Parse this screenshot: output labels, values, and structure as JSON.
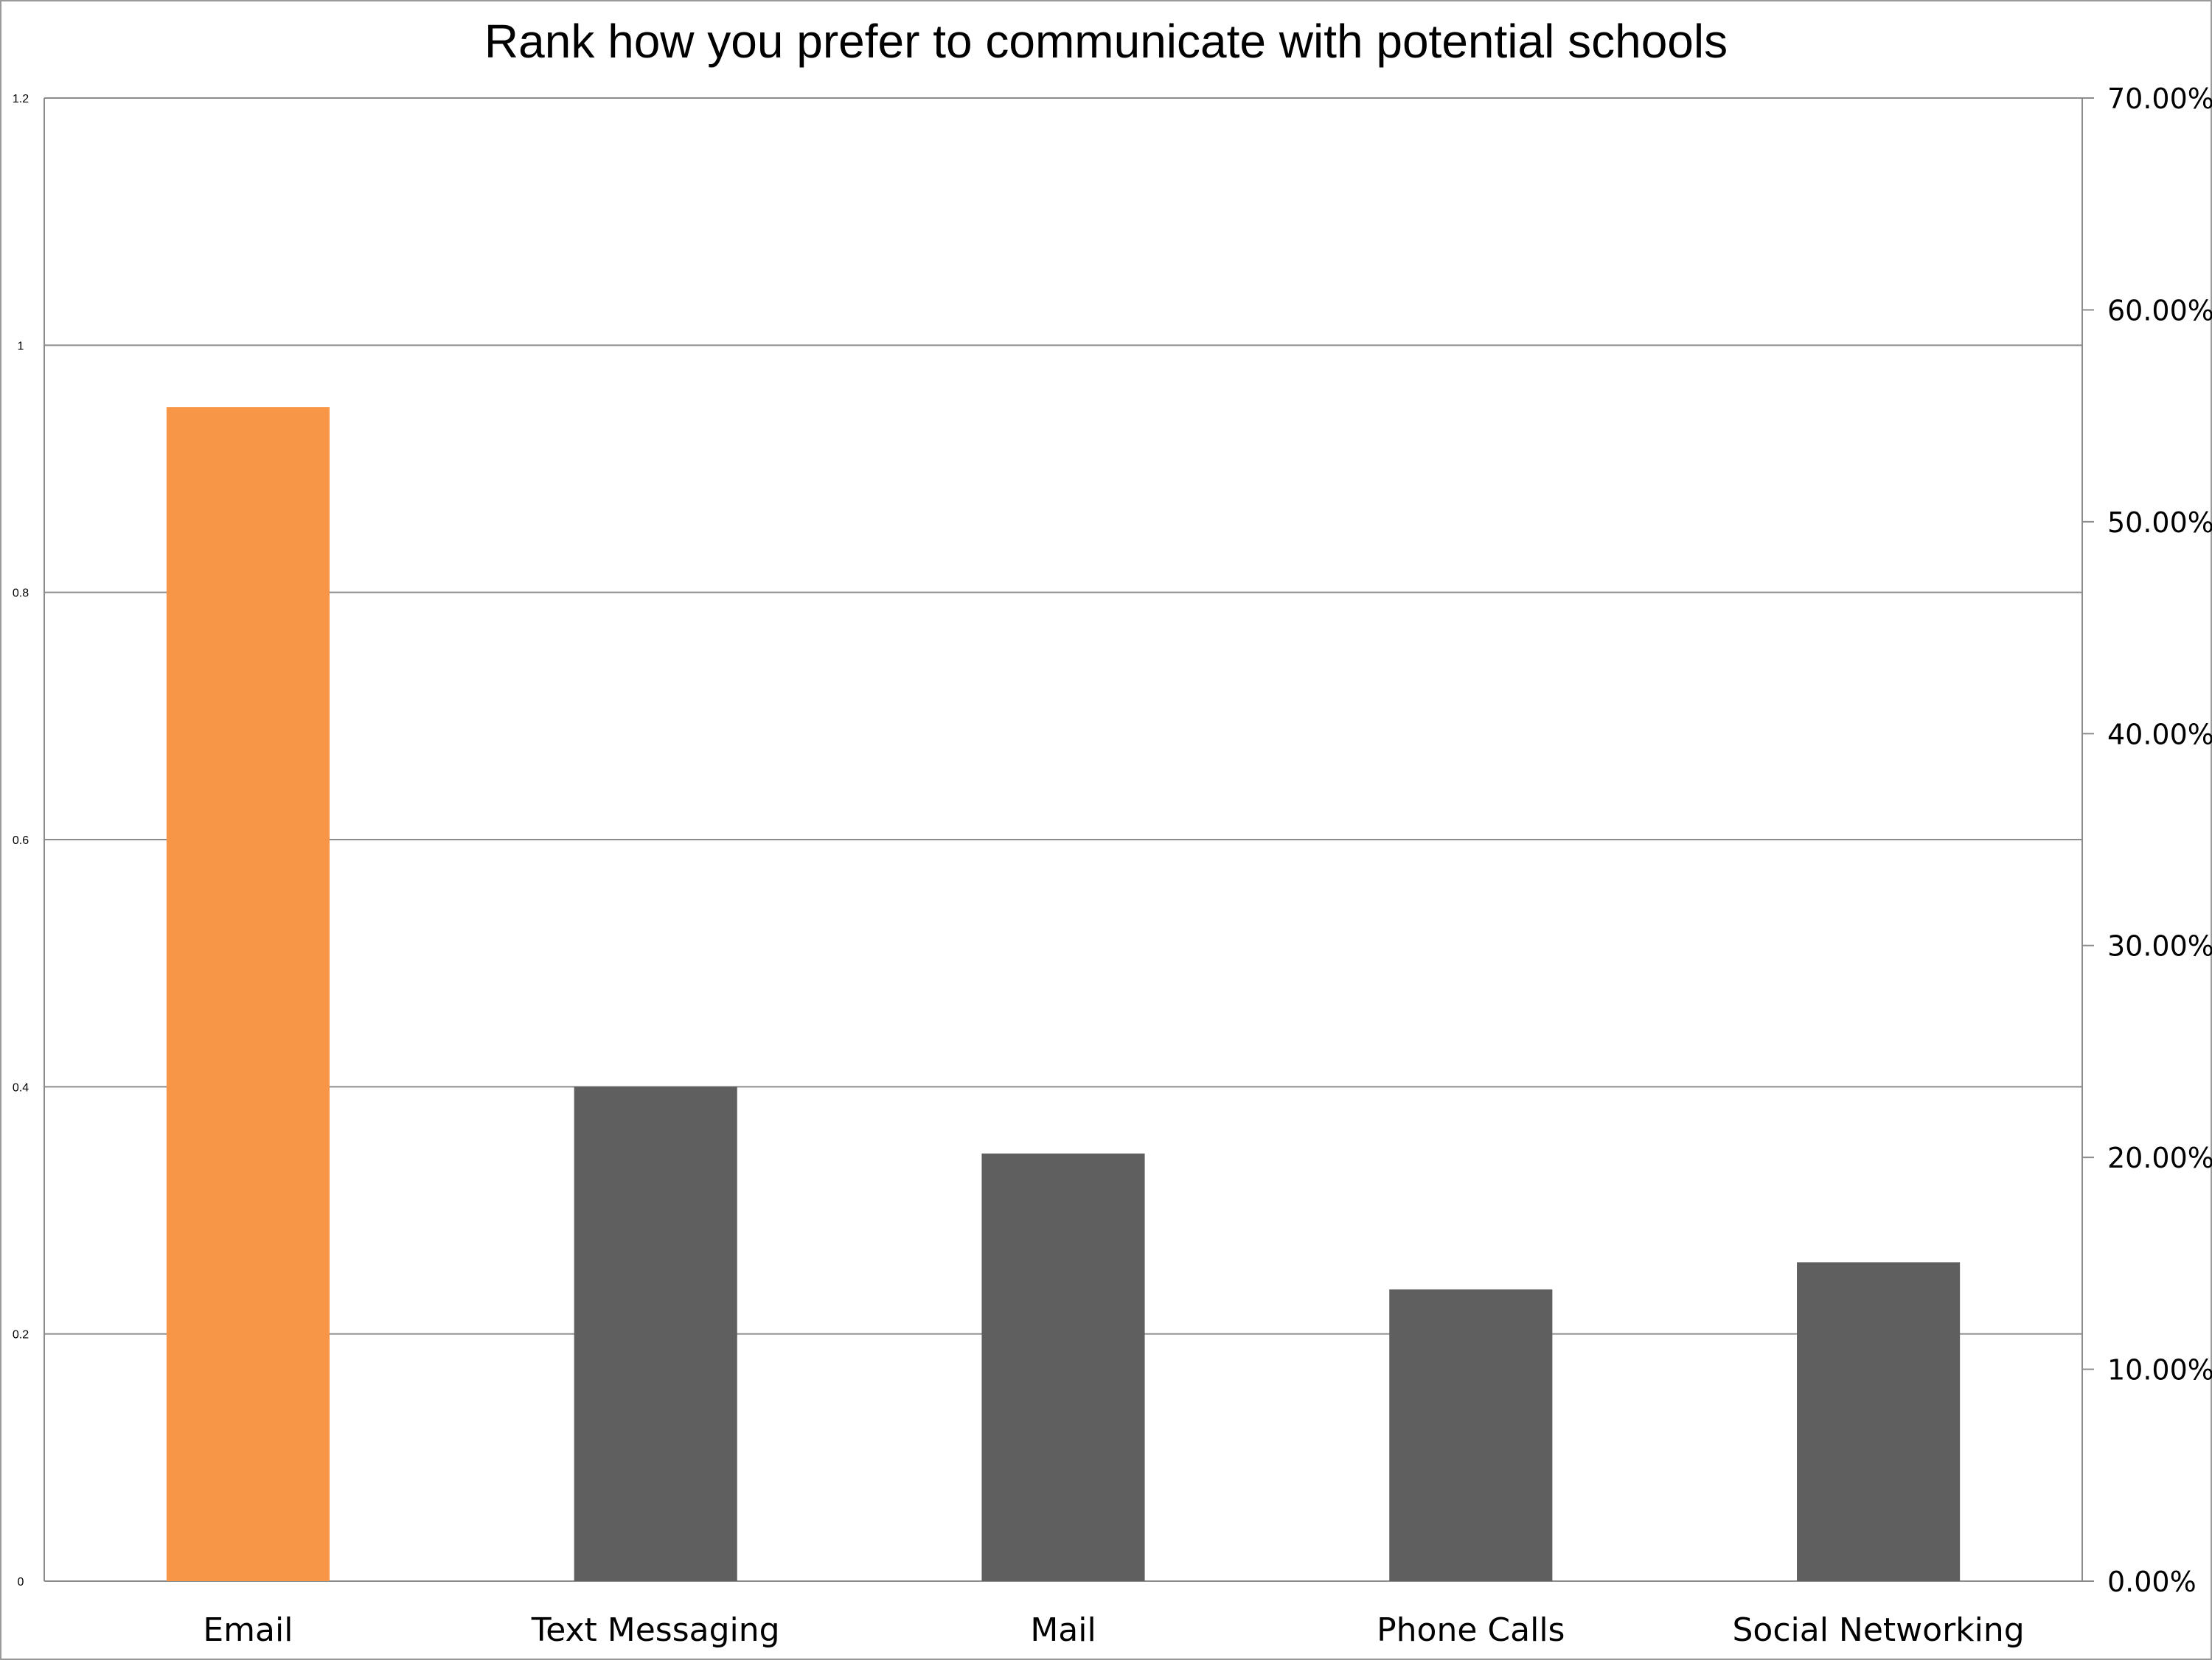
{
  "chart_data": {
    "type": "bar",
    "title": "Rank how you prefer to communicate with potential schools",
    "categories": [
      "Email",
      "Text Messaging",
      "Mail",
      "Phone Calls",
      "Social Networking"
    ],
    "values": [
      0.95,
      0.4,
      0.346,
      0.236,
      0.258
    ],
    "highlight_index": 0,
    "left_axis": {
      "ylim": [
        0,
        1.2
      ],
      "ticks": [
        0,
        0.2,
        0.4,
        0.6,
        0.8,
        1,
        1.2
      ],
      "tick_labels": [
        "0",
        "0.2",
        "0.4",
        "0.6",
        "0.8",
        "1",
        "1.2"
      ]
    },
    "right_axis": {
      "ylim": [
        0,
        70
      ],
      "ticks": [
        0,
        10,
        20,
        30,
        40,
        50,
        60,
        70
      ],
      "tick_labels": [
        "0.00%",
        "10.00%",
        "20.00%",
        "30.00%",
        "40.00%",
        "50.00%",
        "60.00%",
        "70.00%"
      ]
    },
    "grid": true,
    "legend": "none"
  },
  "colors": {
    "highlight_bar": "#f79646",
    "bar": "#5f5f5f",
    "grid": "#8c8c8c",
    "axis": "#8c8c8c"
  }
}
